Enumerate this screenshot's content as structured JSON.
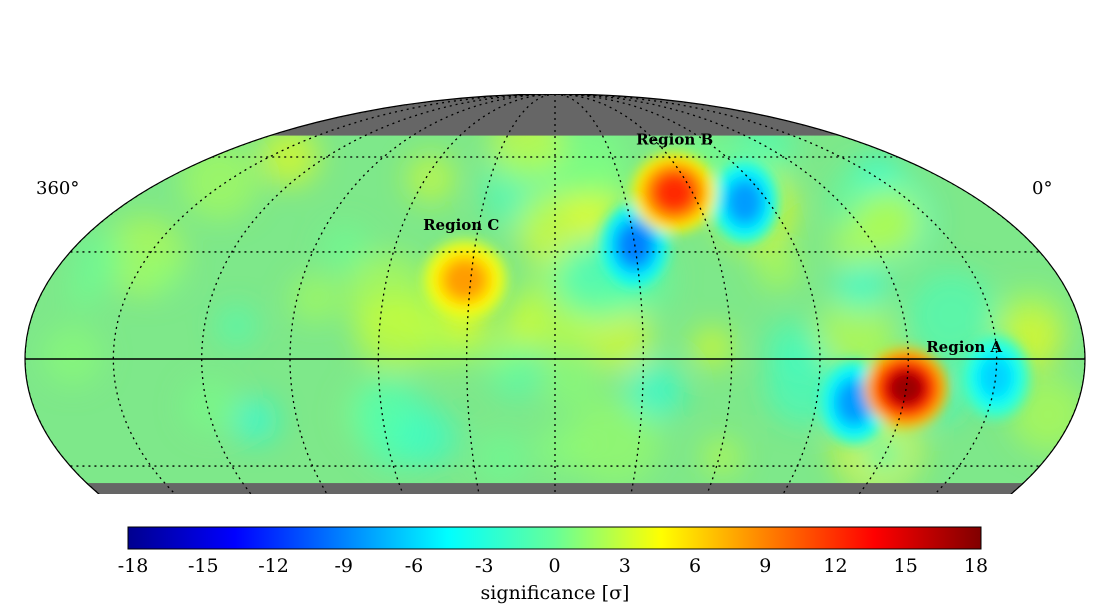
{
  "chart_data": {
    "type": "heatmap",
    "projection": "mollweide",
    "title": "",
    "longitude_labels": {
      "left": "360°",
      "right": "0°"
    },
    "grid": true,
    "regions": [
      {
        "label": "Region A",
        "lon_deg": 60,
        "lat_deg": -8,
        "significance_sigma": 17
      },
      {
        "label": "Region B",
        "lon_deg": 128,
        "lat_deg": 48,
        "significance_sigma": 12
      },
      {
        "label": "Region C",
        "lon_deg": 212,
        "lat_deg": 22,
        "significance_sigma": 8
      }
    ],
    "deficits": [
      {
        "lon_deg": 150,
        "lat_deg": 32,
        "significance_sigma": -9
      },
      {
        "lon_deg": 100,
        "lat_deg": 45,
        "significance_sigma": -8
      },
      {
        "lon_deg": 77,
        "lat_deg": -12,
        "significance_sigma": -8
      },
      {
        "lon_deg": 30,
        "lat_deg": -5,
        "significance_sigma": -6
      }
    ],
    "masked_declination": {
      "below_deg": -35,
      "above_deg": 68,
      "color": "#666666"
    },
    "colorbar": {
      "label": "significance [σ]",
      "range": [
        -18,
        18
      ],
      "ticks": [
        "-18",
        "-15",
        "-12",
        "-9",
        "-6",
        "-3",
        "0",
        "3",
        "6",
        "9",
        "12",
        "15",
        "18"
      ],
      "colormap": "jet"
    }
  }
}
